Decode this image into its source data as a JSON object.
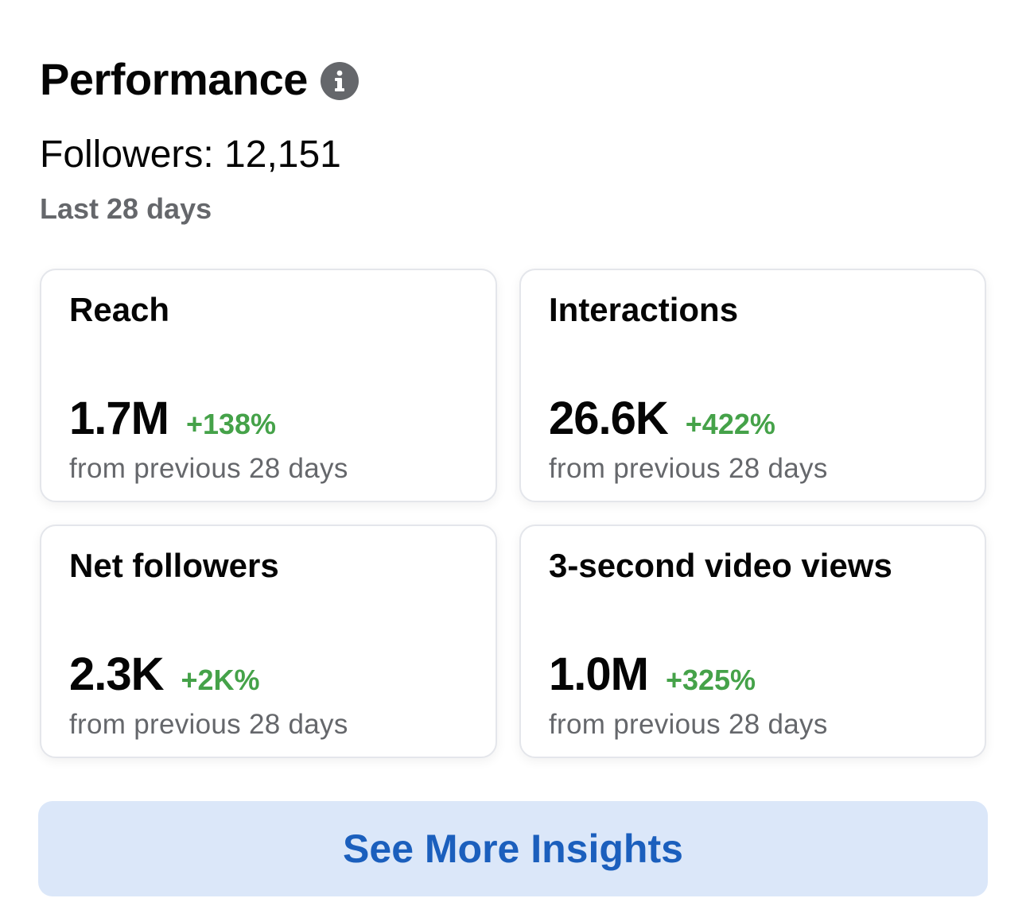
{
  "section": {
    "title": "Performance",
    "info_icon": "info-icon",
    "followers_label": "Followers: 12,151",
    "period": "Last 28 days"
  },
  "cards": [
    {
      "title": "Reach",
      "value": "1.7M",
      "change": "+138%",
      "sub": "from previous 28 days"
    },
    {
      "title": "Interactions",
      "value": "26.6K",
      "change": "+422%",
      "sub": "from previous 28 days"
    },
    {
      "title": "Net followers",
      "value": "2.3K",
      "change": "+2K%",
      "sub": "from previous 28 days"
    },
    {
      "title": "3-second video views",
      "value": "1.0M",
      "change": "+325%",
      "sub": "from previous 28 days"
    }
  ],
  "cta": {
    "label": "See More Insights"
  },
  "colors": {
    "positive_change": "#45a249",
    "cta_background": "#dbe7f9",
    "cta_text": "#1b5fbd",
    "secondary_text": "#65676b"
  }
}
